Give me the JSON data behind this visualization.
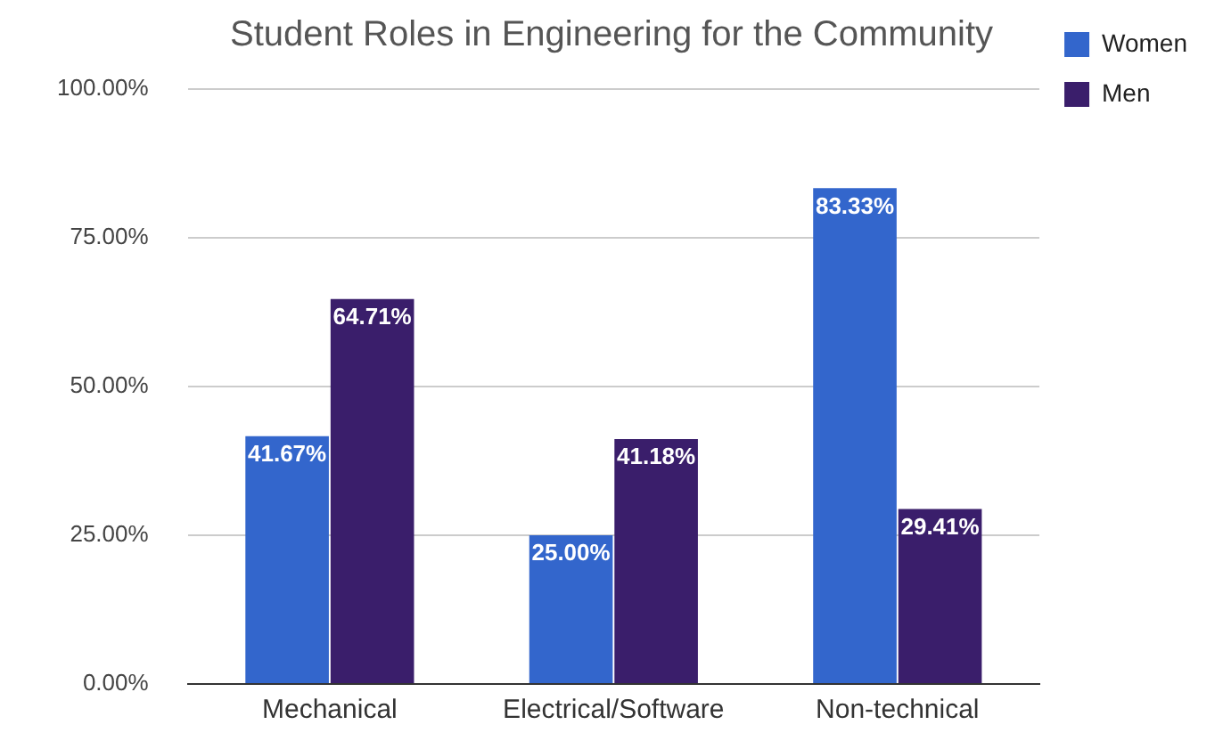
{
  "chart_data": {
    "type": "bar",
    "title": "Student Roles in Engineering for the Community",
    "categories": [
      "Mechanical",
      "Electrical/Software",
      "Non-technical"
    ],
    "series": [
      {
        "name": "Women",
        "color": "#3366cc",
        "values": [
          41.67,
          25.0,
          83.33
        ],
        "value_labels": [
          "41.67%",
          "25.00%",
          "83.33%"
        ]
      },
      {
        "name": "Men",
        "color": "#3a1e6b",
        "values": [
          64.71,
          41.18,
          29.41
        ],
        "value_labels": [
          "64.71%",
          "41.18%",
          "29.41%"
        ]
      }
    ],
    "ylim": [
      0,
      100
    ],
    "yticks": [
      {
        "value": 0,
        "label": "0.00%"
      },
      {
        "value": 25,
        "label": "25.00%"
      },
      {
        "value": 50,
        "label": "50.00%"
      },
      {
        "value": 75,
        "label": "75.00%"
      },
      {
        "value": 100,
        "label": "100.00%"
      }
    ],
    "grid": "y",
    "legend": "top right"
  }
}
